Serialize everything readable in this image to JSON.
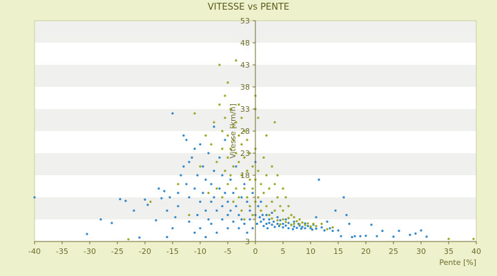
{
  "chart_data": {
    "type": "scatter",
    "title": "VITESSE vs PENTE",
    "xlabel": "Pente [%]",
    "ylabel": "Vitesse [km/h]",
    "xlim": [
      -40,
      40
    ],
    "ylim": [
      3,
      53
    ],
    "xticks": [
      -40,
      -35,
      -30,
      -25,
      -20,
      -15,
      -10,
      -5,
      0,
      5,
      10,
      15,
      20,
      25,
      30,
      35,
      40
    ],
    "yticks": [
      3,
      8,
      13,
      18,
      23,
      28,
      33,
      38,
      43,
      48,
      53
    ],
    "ytick_labels": [
      "3",
      "",
      "",
      "18",
      "23",
      "28",
      "33",
      "38",
      "43",
      "48",
      "53"
    ],
    "grid": "horizontal alternating bands",
    "series": [
      {
        "color": "#2e86c8",
        "marker": "blue-point",
        "points": [
          [
            -40,
            13
          ],
          [
            -30.5,
            4.7
          ],
          [
            -28,
            8
          ],
          [
            -26,
            7.2
          ],
          [
            -24.5,
            12.6
          ],
          [
            -23.5,
            12.2
          ],
          [
            -22,
            10
          ],
          [
            -21,
            3.9
          ],
          [
            -20,
            12.5
          ],
          [
            -19.5,
            11.3
          ],
          [
            -18,
            7.8
          ],
          [
            -17.5,
            15
          ],
          [
            -17,
            12.8
          ],
          [
            -16.5,
            14.4
          ],
          [
            -16,
            10
          ],
          [
            -16,
            4
          ],
          [
            -15.5,
            13
          ],
          [
            -15,
            6
          ],
          [
            -15,
            32
          ],
          [
            -14.5,
            8.5
          ],
          [
            -14,
            14
          ],
          [
            -14,
            11
          ],
          [
            -13.5,
            18
          ],
          [
            -13,
            27
          ],
          [
            -13,
            20
          ],
          [
            -12.5,
            26
          ],
          [
            -12.5,
            16
          ],
          [
            -12,
            21
          ],
          [
            -12,
            13
          ],
          [
            -12,
            7.5
          ],
          [
            -11.5,
            22
          ],
          [
            -11,
            24
          ],
          [
            -11,
            15
          ],
          [
            -11,
            5
          ],
          [
            -10.5,
            18
          ],
          [
            -10.5,
            9
          ],
          [
            -10,
            25
          ],
          [
            -10,
            12
          ],
          [
            -10,
            6
          ],
          [
            -9.5,
            20
          ],
          [
            -9.5,
            14
          ],
          [
            -9,
            17
          ],
          [
            -9,
            10
          ],
          [
            -9,
            4
          ],
          [
            -8.5,
            23
          ],
          [
            -8.5,
            8
          ],
          [
            -8,
            16
          ],
          [
            -8,
            12
          ],
          [
            -8,
            7
          ],
          [
            -7.5,
            29
          ],
          [
            -7.5,
            19
          ],
          [
            -7.5,
            13
          ],
          [
            -7,
            10
          ],
          [
            -7,
            5
          ],
          [
            -6.5,
            22
          ],
          [
            -6.5,
            15
          ],
          [
            -6,
            18
          ],
          [
            -6,
            11
          ],
          [
            -6,
            8
          ],
          [
            -5.5,
            26
          ],
          [
            -5.5,
            14
          ],
          [
            -5,
            12
          ],
          [
            -5,
            9
          ],
          [
            -5,
            6
          ],
          [
            -4.5,
            17
          ],
          [
            -4.5,
            10
          ],
          [
            -4,
            14
          ],
          [
            -4,
            7.5
          ],
          [
            -3.5,
            20
          ],
          [
            -3.5,
            11
          ],
          [
            -3,
            9
          ],
          [
            -3,
            6
          ],
          [
            -2.5,
            13
          ],
          [
            -2.5,
            8
          ],
          [
            -2,
            16
          ],
          [
            -2,
            7
          ],
          [
            -1.5,
            12
          ],
          [
            -1.5,
            5
          ],
          [
            -1,
            10
          ],
          [
            -1,
            8
          ],
          [
            -0.5,
            14
          ],
          [
            -0.5,
            6
          ],
          [
            0,
            21
          ],
          [
            0,
            9
          ],
          [
            0.3,
            7
          ],
          [
            0.5,
            11
          ],
          [
            0.8,
            8.5
          ],
          [
            1,
            7.5
          ],
          [
            1,
            12
          ],
          [
            1.3,
            9
          ],
          [
            1.5,
            6.5
          ],
          [
            1.5,
            8
          ],
          [
            2,
            7
          ],
          [
            2,
            9
          ],
          [
            2.2,
            6
          ],
          [
            2.5,
            8
          ],
          [
            2.5,
            7.2
          ],
          [
            3,
            6.8
          ],
          [
            3,
            9.5
          ],
          [
            3.3,
            7.5
          ],
          [
            3.5,
            6.3
          ],
          [
            4,
            7
          ],
          [
            4,
            8.5
          ],
          [
            4.3,
            6.5
          ],
          [
            4.5,
            7.8
          ],
          [
            5,
            6.2
          ],
          [
            5,
            7
          ],
          [
            5.5,
            8
          ],
          [
            5.5,
            6.6
          ],
          [
            6,
            7.2
          ],
          [
            6,
            6
          ],
          [
            6.5,
            6.8
          ],
          [
            6.8,
            5.8
          ],
          [
            7,
            7.5
          ],
          [
            7,
            6.4
          ],
          [
            7.5,
            6.1
          ],
          [
            7.8,
            7
          ],
          [
            8,
            6.6
          ],
          [
            8.3,
            5.9
          ],
          [
            8.5,
            6.3
          ],
          [
            9,
            7.1
          ],
          [
            9,
            6
          ],
          [
            9.5,
            6.5
          ],
          [
            10,
            6
          ],
          [
            10.3,
            5.7
          ],
          [
            10.5,
            6.8
          ],
          [
            11,
            5.9
          ],
          [
            11,
            8.5
          ],
          [
            11.5,
            17
          ],
          [
            12,
            6.2
          ],
          [
            12.5,
            5.5
          ],
          [
            13,
            7.5
          ],
          [
            13.5,
            6
          ],
          [
            14,
            5.4
          ],
          [
            14.5,
            10
          ],
          [
            15,
            5.5
          ],
          [
            15.5,
            4.2
          ],
          [
            16,
            13
          ],
          [
            16.5,
            9
          ],
          [
            17,
            7
          ],
          [
            17.5,
            4
          ],
          [
            18,
            4.2
          ],
          [
            19,
            4.2
          ],
          [
            20,
            4.3
          ],
          [
            21,
            6.8
          ],
          [
            22,
            4.2
          ],
          [
            23,
            5.4
          ],
          [
            25,
            4.1
          ],
          [
            26,
            5.4
          ],
          [
            28,
            4.5
          ],
          [
            29,
            4.8
          ],
          [
            30,
            5.5
          ],
          [
            31,
            4.1
          ]
        ]
      },
      {
        "color": "#9aa61e",
        "marker": "olive-point",
        "points": [
          [
            -23,
            3.5
          ],
          [
            -19,
            12
          ],
          [
            -14,
            16
          ],
          [
            -12,
            9
          ],
          [
            -11,
            32
          ],
          [
            -10,
            20
          ],
          [
            -9,
            27
          ],
          [
            -8.5,
            14
          ],
          [
            -8,
            25
          ],
          [
            -7.5,
            30
          ],
          [
            -7,
            21
          ],
          [
            -7,
            15
          ],
          [
            -6.5,
            43
          ],
          [
            -6.5,
            34
          ],
          [
            -6,
            28
          ],
          [
            -6,
            24
          ],
          [
            -6,
            13
          ],
          [
            -5.5,
            36
          ],
          [
            -5.5,
            31
          ],
          [
            -5.5,
            19
          ],
          [
            -5,
            39
          ],
          [
            -5,
            27
          ],
          [
            -5,
            22
          ],
          [
            -5,
            16
          ],
          [
            -4.5,
            33
          ],
          [
            -4.5,
            24
          ],
          [
            -4.5,
            18
          ],
          [
            -4,
            29
          ],
          [
            -4,
            26
          ],
          [
            -4,
            20
          ],
          [
            -4,
            12
          ],
          [
            -3.5,
            44
          ],
          [
            -3.5,
            30
          ],
          [
            -3.5,
            23
          ],
          [
            -3.5,
            15
          ],
          [
            -3,
            34
          ],
          [
            -3,
            27
          ],
          [
            -3,
            21
          ],
          [
            -3,
            13
          ],
          [
            -2.5,
            31
          ],
          [
            -2.5,
            25
          ],
          [
            -2.5,
            18
          ],
          [
            -2.5,
            10
          ],
          [
            -2,
            28
          ],
          [
            -2,
            22
          ],
          [
            -2,
            15
          ],
          [
            -2,
            8
          ],
          [
            -1.5,
            26
          ],
          [
            -1.5,
            19
          ],
          [
            -1.5,
            13
          ],
          [
            -1,
            23
          ],
          [
            -1,
            17
          ],
          [
            -1,
            11
          ],
          [
            -0.5,
            20
          ],
          [
            -0.5,
            15
          ],
          [
            -0.5,
            9
          ],
          [
            0,
            36
          ],
          [
            0,
            33
          ],
          [
            0,
            24
          ],
          [
            0,
            17
          ],
          [
            0,
            12
          ],
          [
            0.5,
            31
          ],
          [
            0.5,
            19
          ],
          [
            0.5,
            13
          ],
          [
            1,
            16
          ],
          [
            1,
            10
          ],
          [
            1.5,
            22
          ],
          [
            1.5,
            14
          ],
          [
            2,
            27
          ],
          [
            2,
            18
          ],
          [
            2,
            11
          ],
          [
            2.5,
            15
          ],
          [
            2.5,
            9
          ],
          [
            3,
            20
          ],
          [
            3,
            12
          ],
          [
            3,
            8.2
          ],
          [
            3.5,
            30
          ],
          [
            3.5,
            16
          ],
          [
            3.5,
            10
          ],
          [
            4,
            18
          ],
          [
            4,
            13
          ],
          [
            4,
            7.8
          ],
          [
            4.5,
            11
          ],
          [
            4.5,
            6.9
          ],
          [
            5,
            15
          ],
          [
            5,
            10
          ],
          [
            5,
            8
          ],
          [
            5.5,
            13
          ],
          [
            5.5,
            7.4
          ],
          [
            6,
            11
          ],
          [
            6,
            8.3
          ],
          [
            6.5,
            9
          ],
          [
            6.5,
            6.7
          ],
          [
            7,
            8.5
          ],
          [
            7,
            7
          ],
          [
            7.5,
            7.6
          ],
          [
            8,
            8
          ],
          [
            8,
            6.9
          ],
          [
            8.5,
            7.3
          ],
          [
            9,
            6.7
          ],
          [
            9.5,
            7.1
          ],
          [
            10,
            6.4
          ],
          [
            10.5,
            7
          ],
          [
            11,
            6.5
          ],
          [
            12,
            7
          ],
          [
            13,
            5.8
          ],
          [
            14,
            6.2
          ],
          [
            35,
            3.6
          ],
          [
            39.5,
            3.6
          ]
        ]
      }
    ]
  }
}
